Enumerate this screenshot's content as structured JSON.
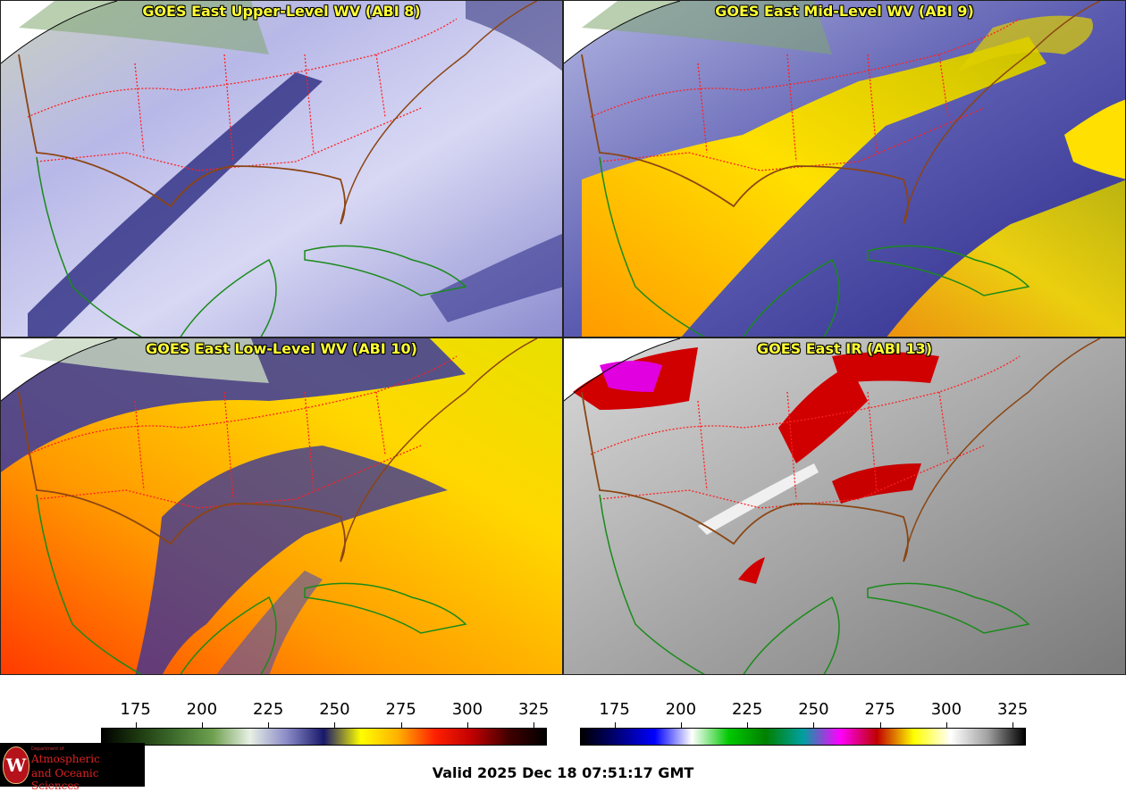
{
  "panels": [
    {
      "id": "p1",
      "title": "GOES East Upper-Level WV (ABI 8)",
      "product": "water-vapor-upper"
    },
    {
      "id": "p2",
      "title": "GOES East Mid-Level WV (ABI 9)",
      "product": "water-vapor-mid"
    },
    {
      "id": "p3",
      "title": "GOES East Low-Level WV (ABI 10)",
      "product": "water-vapor-low"
    },
    {
      "id": "p4",
      "title": "GOES East IR (ABI 13)",
      "product": "infrared"
    }
  ],
  "colorbars": {
    "wv": {
      "ticks": [
        "175",
        "200",
        "225",
        "250",
        "275",
        "300",
        "325"
      ],
      "tick_values": [
        175,
        200,
        225,
        250,
        275,
        300,
        325
      ],
      "range": [
        162,
        330
      ],
      "stops": [
        "#000000",
        "#1d3a10",
        "#3f6e2d",
        "#6ea04f",
        "#e8f0e4",
        "#8a8ac8",
        "#18186a",
        "#ffff00",
        "#ffb000",
        "#ff2000",
        "#c00000",
        "#400000",
        "#000000"
      ]
    },
    "ir": {
      "ticks": [
        "175",
        "200",
        "225",
        "250",
        "275",
        "300",
        "325"
      ],
      "tick_values": [
        175,
        200,
        225,
        250,
        275,
        300,
        325
      ],
      "range": [
        162,
        330
      ],
      "stops": [
        "#000000",
        "#00007a",
        "#0000ff",
        "#ffffff",
        "#00c800",
        "#008000",
        "#00a0a0",
        "#ff00ff",
        "#c00000",
        "#ffff00",
        "#ffffff",
        "#a0a0a0",
        "#000000"
      ]
    }
  },
  "valid_time": "Valid 2025 Dec 18 07:51:17 GMT",
  "logo": {
    "department": "Department of",
    "line1": "Atmospheric",
    "line2": "and Oceanic Sciences",
    "mark": "W"
  },
  "colors": {
    "title_text": "#ffff33",
    "state_borders": "#ff2020",
    "country_borders": "#8b4513",
    "coastlines": "#1a8a1a"
  }
}
